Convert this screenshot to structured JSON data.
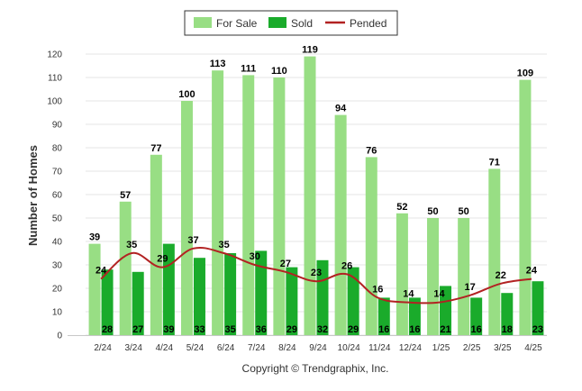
{
  "colors": {
    "for_sale": "#98de84",
    "sold": "#1aab2b",
    "pended": "#b22222",
    "grid": "#e6e6e6",
    "legend_border": "#333333"
  },
  "copyright": "Copyright © Trendgraphix, Inc.",
  "chart_data": {
    "type": "bar",
    "ylabel": "Number of Homes",
    "xlabel": "",
    "ylim": [
      0,
      120
    ],
    "yticks": [
      0,
      10,
      20,
      30,
      40,
      50,
      60,
      70,
      80,
      90,
      100,
      110,
      120
    ],
    "grid": true,
    "legend_position": "top-center",
    "categories": [
      "2/24",
      "3/24",
      "4/24",
      "5/24",
      "6/24",
      "7/24",
      "8/24",
      "9/24",
      "10/24",
      "11/24",
      "12/24",
      "1/25",
      "2/25",
      "3/25",
      "4/25"
    ],
    "series": [
      {
        "name": "For Sale",
        "type": "bar",
        "values": [
          39,
          57,
          77,
          100,
          113,
          111,
          110,
          119,
          94,
          76,
          52,
          50,
          50,
          71,
          109
        ]
      },
      {
        "name": "Sold",
        "type": "bar",
        "values": [
          28,
          27,
          39,
          33,
          35,
          36,
          29,
          32,
          29,
          16,
          16,
          21,
          16,
          18,
          23
        ]
      },
      {
        "name": "Pended",
        "type": "line",
        "values": [
          24,
          35,
          29,
          37,
          35,
          30,
          27,
          23,
          26,
          16,
          14,
          14,
          17,
          22,
          24
        ]
      }
    ]
  }
}
